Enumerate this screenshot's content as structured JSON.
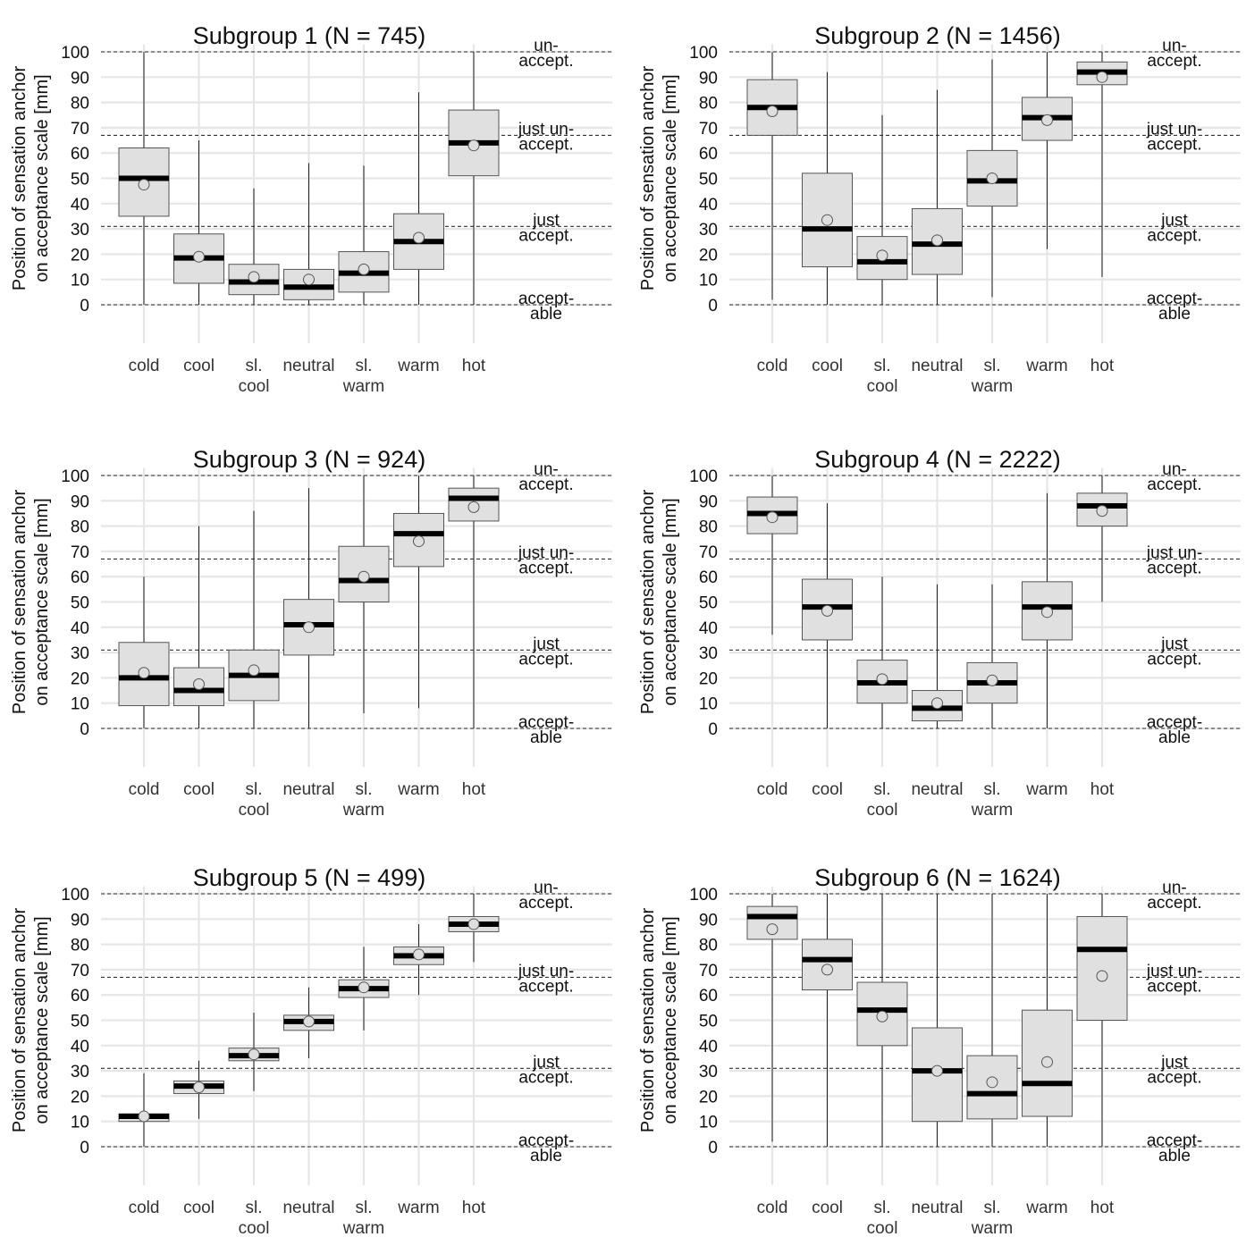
{
  "figure": {
    "y_axis_label_line1": "Position of sensation anchor",
    "y_axis_label_line2": "on acceptance scale [mm]",
    "right_labels": [
      {
        "lines": [
          "un-",
          "accept."
        ],
        "value": 100
      },
      {
        "lines": [
          "just un-",
          "accept."
        ],
        "value": 67
      },
      {
        "lines": [
          "just",
          "accept."
        ],
        "value": 31
      },
      {
        "lines": [
          "accept-",
          "able"
        ],
        "value": 0
      }
    ],
    "reference_lines": [
      0,
      31,
      67,
      100
    ],
    "colors": {
      "box_fill": "#e0e0e0",
      "box_stroke": "#555555",
      "median": "#000000",
      "mean_fill": "#dedede",
      "grid": "#e6e6e6",
      "reference_line": "#333333"
    }
  },
  "chart_data": [
    {
      "type": "boxplot",
      "title": "Subgroup 1 (N = 745)",
      "categories": [
        "cold",
        "cool",
        "sl.\ncool",
        "neutral",
        "sl.\nwarm",
        "warm",
        "hot"
      ],
      "ylim": [
        0,
        100
      ],
      "yticks": [
        0,
        10,
        20,
        30,
        40,
        50,
        60,
        70,
        80,
        90,
        100
      ],
      "grid": true,
      "boxes": [
        {
          "whisker_low": 0,
          "q1": 35,
          "median": 50,
          "q3": 62,
          "whisker_high": 100,
          "mean": 47.5
        },
        {
          "whisker_low": 0,
          "q1": 8.5,
          "median": 18.5,
          "q3": 28,
          "whisker_high": 65,
          "mean": 19
        },
        {
          "whisker_low": 0,
          "q1": 4,
          "median": 9,
          "q3": 16,
          "whisker_high": 46,
          "mean": 11
        },
        {
          "whisker_low": 0,
          "q1": 2,
          "median": 7,
          "q3": 14,
          "whisker_high": 56,
          "mean": 10
        },
        {
          "whisker_low": 0,
          "q1": 5,
          "median": 12.5,
          "q3": 21,
          "whisker_high": 55,
          "mean": 14
        },
        {
          "whisker_low": 0,
          "q1": 14,
          "median": 25,
          "q3": 36,
          "whisker_high": 84,
          "mean": 26.5
        },
        {
          "whisker_low": 0,
          "q1": 51,
          "median": 64,
          "q3": 77,
          "whisker_high": 100,
          "mean": 63
        }
      ]
    },
    {
      "type": "boxplot",
      "title": "Subgroup 2 (N = 1456)",
      "categories": [
        "cold",
        "cool",
        "sl.\ncool",
        "neutral",
        "sl.\nwarm",
        "warm",
        "hot"
      ],
      "ylim": [
        0,
        100
      ],
      "yticks": [
        0,
        10,
        20,
        30,
        40,
        50,
        60,
        70,
        80,
        90,
        100
      ],
      "grid": true,
      "boxes": [
        {
          "whisker_low": 2,
          "q1": 67,
          "median": 78,
          "q3": 89,
          "whisker_high": 100,
          "mean": 76.5
        },
        {
          "whisker_low": 0,
          "q1": 15,
          "median": 30,
          "q3": 52,
          "whisker_high": 92,
          "mean": 33.5
        },
        {
          "whisker_low": 0,
          "q1": 10,
          "median": 17,
          "q3": 27,
          "whisker_high": 75,
          "mean": 19.5
        },
        {
          "whisker_low": 0,
          "q1": 12,
          "median": 24,
          "q3": 38,
          "whisker_high": 85,
          "mean": 25.5
        },
        {
          "whisker_low": 3,
          "q1": 39,
          "median": 49,
          "q3": 61,
          "whisker_high": 97,
          "mean": 50
        },
        {
          "whisker_low": 22,
          "q1": 65,
          "median": 74,
          "q3": 82,
          "whisker_high": 100,
          "mean": 73
        },
        {
          "whisker_low": 11,
          "q1": 87,
          "median": 92,
          "q3": 96,
          "whisker_high": 100,
          "mean": 90
        }
      ]
    },
    {
      "type": "boxplot",
      "title": "Subgroup 3 (N = 924)",
      "categories": [
        "cold",
        "cool",
        "sl.\ncool",
        "neutral",
        "sl.\nwarm",
        "warm",
        "hot"
      ],
      "ylim": [
        0,
        100
      ],
      "yticks": [
        0,
        10,
        20,
        30,
        40,
        50,
        60,
        70,
        80,
        90,
        100
      ],
      "grid": true,
      "boxes": [
        {
          "whisker_low": 0,
          "q1": 9,
          "median": 20,
          "q3": 34,
          "whisker_high": 60,
          "mean": 22
        },
        {
          "whisker_low": 0,
          "q1": 9,
          "median": 15,
          "q3": 24,
          "whisker_high": 80,
          "mean": 17.5
        },
        {
          "whisker_low": 0,
          "q1": 11,
          "median": 21,
          "q3": 31,
          "whisker_high": 86,
          "mean": 23
        },
        {
          "whisker_low": 0,
          "q1": 29,
          "median": 41,
          "q3": 51,
          "whisker_high": 95,
          "mean": 40
        },
        {
          "whisker_low": 6,
          "q1": 50,
          "median": 58.5,
          "q3": 72,
          "whisker_high": 100,
          "mean": 60
        },
        {
          "whisker_low": 8,
          "q1": 64,
          "median": 77,
          "q3": 85,
          "whisker_high": 100,
          "mean": 74
        },
        {
          "whisker_low": 0,
          "q1": 82,
          "median": 91,
          "q3": 95,
          "whisker_high": 100,
          "mean": 87.5
        }
      ]
    },
    {
      "type": "boxplot",
      "title": "Subgroup 4 (N = 2222)",
      "categories": [
        "cold",
        "cool",
        "sl.\ncool",
        "neutral",
        "sl.\nwarm",
        "warm",
        "hot"
      ],
      "ylim": [
        0,
        100
      ],
      "yticks": [
        0,
        10,
        20,
        30,
        40,
        50,
        60,
        70,
        80,
        90,
        100
      ],
      "grid": true,
      "boxes": [
        {
          "whisker_low": 37,
          "q1": 77,
          "median": 85,
          "q3": 91.5,
          "whisker_high": 100,
          "mean": 83.5
        },
        {
          "whisker_low": 0,
          "q1": 35,
          "median": 48,
          "q3": 59,
          "whisker_high": 89,
          "mean": 46.5
        },
        {
          "whisker_low": 0,
          "q1": 10,
          "median": 18,
          "q3": 27,
          "whisker_high": 60,
          "mean": 19.5
        },
        {
          "whisker_low": 0,
          "q1": 3,
          "median": 8,
          "q3": 15,
          "whisker_high": 57,
          "mean": 10
        },
        {
          "whisker_low": 0,
          "q1": 10,
          "median": 18,
          "q3": 26,
          "whisker_high": 57,
          "mean": 19
        },
        {
          "whisker_low": 0,
          "q1": 35,
          "median": 48,
          "q3": 58,
          "whisker_high": 93,
          "mean": 46
        },
        {
          "whisker_low": 50,
          "q1": 80,
          "median": 88,
          "q3": 93,
          "whisker_high": 100,
          "mean": 86
        }
      ]
    },
    {
      "type": "boxplot",
      "title": "Subgroup 5 (N = 499)",
      "categories": [
        "cold",
        "cool",
        "sl.\ncool",
        "neutral",
        "sl.\nwarm",
        "warm",
        "hot"
      ],
      "ylim": [
        0,
        100
      ],
      "yticks": [
        0,
        10,
        20,
        30,
        40,
        50,
        60,
        70,
        80,
        90,
        100
      ],
      "grid": true,
      "boxes": [
        {
          "whisker_low": 0,
          "q1": 10,
          "median": 12,
          "q3": 13,
          "whisker_high": 29,
          "mean": 12
        },
        {
          "whisker_low": 11,
          "q1": 21,
          "median": 24,
          "q3": 26,
          "whisker_high": 34,
          "mean": 23.5
        },
        {
          "whisker_low": 22,
          "q1": 34,
          "median": 36,
          "q3": 39,
          "whisker_high": 53,
          "mean": 36.5
        },
        {
          "whisker_low": 35,
          "q1": 46,
          "median": 49.5,
          "q3": 52,
          "whisker_high": 63,
          "mean": 49.5
        },
        {
          "whisker_low": 46,
          "q1": 59,
          "median": 62.5,
          "q3": 66,
          "whisker_high": 79,
          "mean": 63
        },
        {
          "whisker_low": 60,
          "q1": 72,
          "median": 75.5,
          "q3": 79,
          "whisker_high": 88,
          "mean": 76
        },
        {
          "whisker_low": 73,
          "q1": 85,
          "median": 88,
          "q3": 91,
          "whisker_high": 100,
          "mean": 88
        }
      ]
    },
    {
      "type": "boxplot",
      "title": "Subgroup 6 (N = 1624)",
      "categories": [
        "cold",
        "cool",
        "sl.\ncool",
        "neutral",
        "sl.\nwarm",
        "warm",
        "hot"
      ],
      "ylim": [
        0,
        100
      ],
      "yticks": [
        0,
        10,
        20,
        30,
        40,
        50,
        60,
        70,
        80,
        90,
        100
      ],
      "grid": true,
      "boxes": [
        {
          "whisker_low": 2,
          "q1": 82,
          "median": 91,
          "q3": 95,
          "whisker_high": 100,
          "mean": 86
        },
        {
          "whisker_low": 0,
          "q1": 62,
          "median": 74,
          "q3": 82,
          "whisker_high": 100,
          "mean": 70
        },
        {
          "whisker_low": 0,
          "q1": 40,
          "median": 54,
          "q3": 65,
          "whisker_high": 100,
          "mean": 51.5
        },
        {
          "whisker_low": 0,
          "q1": 10,
          "median": 30,
          "q3": 47,
          "whisker_high": 100,
          "mean": 30
        },
        {
          "whisker_low": 0,
          "q1": 11,
          "median": 21,
          "q3": 36,
          "whisker_high": 100,
          "mean": 25.5
        },
        {
          "whisker_low": 0,
          "q1": 12,
          "median": 25,
          "q3": 54,
          "whisker_high": 100,
          "mean": 33.5
        },
        {
          "whisker_low": 0,
          "q1": 50,
          "median": 78,
          "q3": 91,
          "whisker_high": 100,
          "mean": 67.5
        }
      ]
    }
  ]
}
